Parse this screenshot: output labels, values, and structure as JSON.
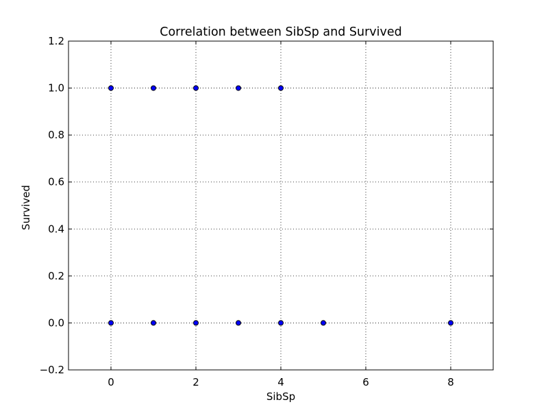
{
  "chart_data": {
    "type": "scatter",
    "title": "Correlation between SibSp and Survived",
    "xlabel": "SibSp",
    "ylabel": "Survived",
    "xlim": [
      -1,
      9
    ],
    "ylim": [
      -0.2,
      1.2
    ],
    "xticks": [
      0,
      2,
      4,
      6,
      8
    ],
    "xtick_labels": [
      "0",
      "2",
      "4",
      "6",
      "8"
    ],
    "yticks": [
      -0.2,
      0.0,
      0.2,
      0.4,
      0.6,
      0.8,
      1.0,
      1.2
    ],
    "ytick_labels": [
      "−0.2",
      "0.0",
      "0.2",
      "0.4",
      "0.6",
      "0.8",
      "1.0",
      "1.2"
    ],
    "grid": true,
    "marker_color": "#0000ff",
    "marker_edge_color": "#000000",
    "points": [
      {
        "x": 0,
        "y": 1
      },
      {
        "x": 1,
        "y": 1
      },
      {
        "x": 2,
        "y": 1
      },
      {
        "x": 3,
        "y": 1
      },
      {
        "x": 4,
        "y": 1
      },
      {
        "x": 0,
        "y": 0
      },
      {
        "x": 1,
        "y": 0
      },
      {
        "x": 2,
        "y": 0
      },
      {
        "x": 3,
        "y": 0
      },
      {
        "x": 4,
        "y": 0
      },
      {
        "x": 5,
        "y": 0
      },
      {
        "x": 8,
        "y": 0
      }
    ]
  }
}
